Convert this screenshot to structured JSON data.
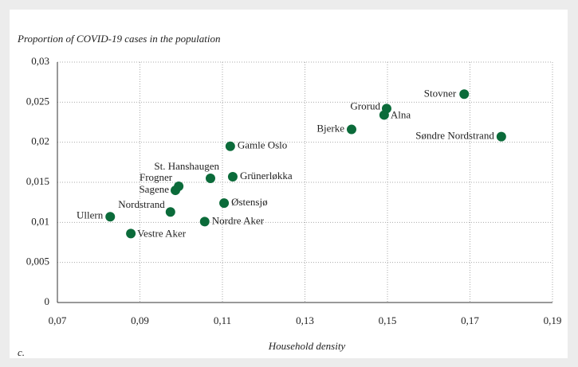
{
  "chart_data": {
    "type": "scatter",
    "title": "Proportion of COVID-19 cases in the population",
    "x_label": "Household density",
    "footnote": "c.",
    "color": "#0b6b3a",
    "grid": true,
    "labels": [
      "Stovner",
      "Grorud",
      "Alna",
      "Bjerke",
      "Søndre Nordstrand",
      "Gamle Oslo",
      "Grünerløkka",
      "St. Hanshaugen",
      "Frogner",
      "Sagene",
      "Østensjø",
      "Nordstrand",
      "Nordre Aker",
      "Ullern",
      "Vestre Aker"
    ],
    "x": [
      0.1686,
      0.1498,
      0.1492,
      0.1413,
      0.1776,
      0.1119,
      0.1125,
      0.1071,
      0.0994,
      0.0986,
      0.1104,
      0.0974,
      0.1057,
      0.0828,
      0.0878
    ],
    "y": [
      0.026,
      0.0242,
      0.0234,
      0.0216,
      0.0207,
      0.0195,
      0.0157,
      0.0155,
      0.0145,
      0.014,
      0.0124,
      0.0113,
      0.0101,
      0.0107,
      0.0086
    ],
    "xlim": [
      0.07,
      0.19
    ],
    "xticks": [
      {
        "value": 0.07,
        "label": "0,07"
      },
      {
        "value": 0.09,
        "label": "0,09"
      },
      {
        "value": 0.11,
        "label": "0,11"
      },
      {
        "value": 0.13,
        "label": "0,13"
      },
      {
        "value": 0.15,
        "label": "0,15"
      },
      {
        "value": 0.17,
        "label": "0,17"
      },
      {
        "value": 0.19,
        "label": "0,19"
      }
    ],
    "ylim": [
      0,
      0.03
    ],
    "yticks": [
      0,
      {
        "value": 0.005,
        "label": "0,005"
      },
      {
        "value": 0.01,
        "label": "0,01"
      },
      {
        "value": 0.015,
        "label": "0,015"
      },
      {
        "value": 0.02,
        "label": "0,02"
      },
      {
        "value": 0.025,
        "label": "0,025"
      },
      {
        "value": 0.03,
        "label": "0,03"
      }
    ]
  }
}
